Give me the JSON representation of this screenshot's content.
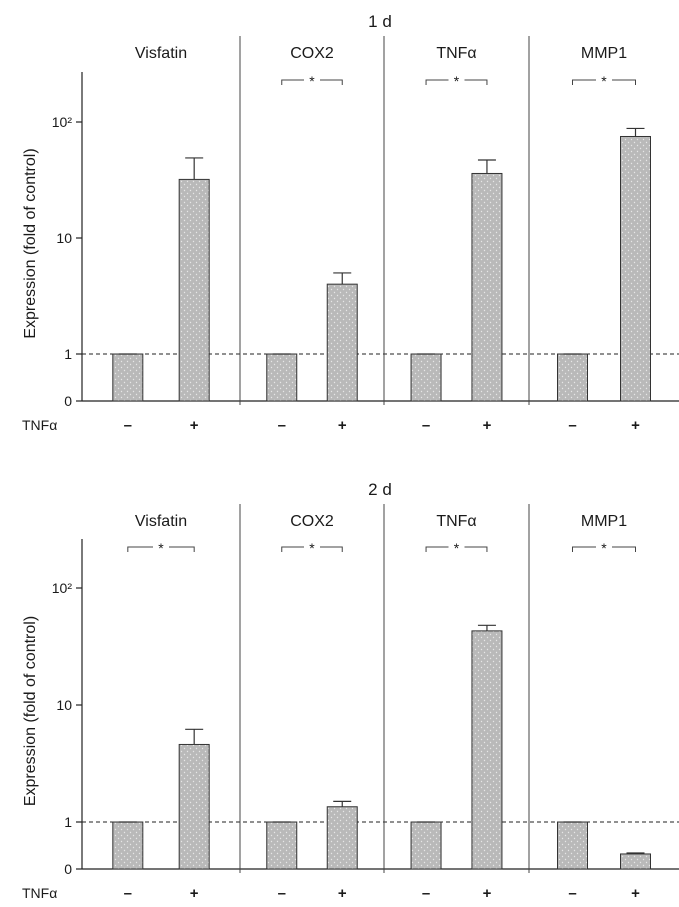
{
  "chart_data": [
    {
      "type": "bar",
      "title": "1 d",
      "ylabel": "Expression (fold of control)",
      "xlabel_row": "TNFα",
      "y_scale": "log-with-zero",
      "y_ticks": [
        "0",
        "1",
        "10",
        "10²"
      ],
      "treatment_labels": [
        "–",
        "+"
      ],
      "groups": [
        {
          "name": "Visfatin",
          "values": [
            1,
            32
          ],
          "errors": [
            0,
            17
          ],
          "significant": false
        },
        {
          "name": "COX2",
          "values": [
            1,
            4.0
          ],
          "errors": [
            0,
            1.0
          ],
          "significant": true
        },
        {
          "name": "TNFα",
          "values": [
            1,
            36
          ],
          "errors": [
            0,
            11
          ],
          "significant": true
        },
        {
          "name": "MMP1",
          "values": [
            1,
            75
          ],
          "errors": [
            0,
            13
          ],
          "significant": true
        }
      ],
      "significance_label": "*",
      "reference_line": 1
    },
    {
      "type": "bar",
      "title": "2 d",
      "ylabel": "Expression (fold of control)",
      "xlabel_row": "TNFα",
      "y_scale": "log-with-zero",
      "y_ticks": [
        "0",
        "1",
        "10",
        "10²"
      ],
      "treatment_labels": [
        "–",
        "+"
      ],
      "groups": [
        {
          "name": "Visfatin",
          "values": [
            1,
            4.6
          ],
          "errors": [
            0,
            1.6
          ],
          "significant": true
        },
        {
          "name": "COX2",
          "values": [
            1,
            1.35
          ],
          "errors": [
            0,
            0.15
          ],
          "significant": true
        },
        {
          "name": "TNFα",
          "values": [
            1,
            43
          ],
          "errors": [
            0,
            5
          ],
          "significant": true
        },
        {
          "name": "MMP1",
          "values": [
            1,
            0.32
          ],
          "errors": [
            0,
            0.02
          ],
          "significant": true
        }
      ],
      "significance_label": "*",
      "reference_line": 1
    }
  ]
}
